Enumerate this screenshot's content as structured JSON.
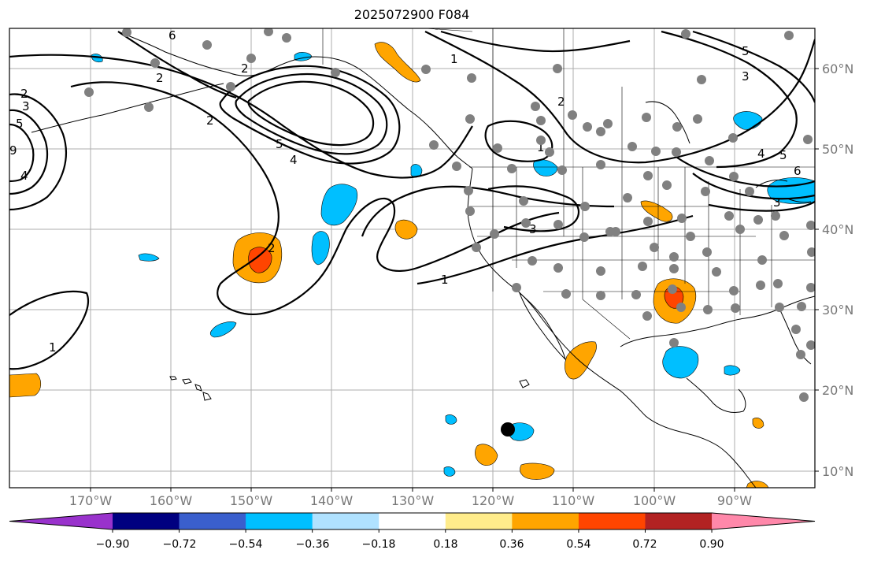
{
  "title": "2025072900 F084",
  "lat_labels": [
    "60°N",
    "50°N",
    "40°N",
    "30°N",
    "20°N",
    "10°N"
  ],
  "lon_labels": [
    "170°W",
    "160°W",
    "150°W",
    "140°W",
    "130°W",
    "120°W",
    "110°W",
    "100°W",
    "90°W"
  ],
  "colorbar": {
    "tick_labels": [
      "−0.90",
      "−0.72",
      "−0.54",
      "−0.36",
      "−0.18",
      "0.18",
      "0.36",
      "0.54",
      "0.72",
      "0.90"
    ],
    "colors": [
      "#9932CC",
      "#000080",
      "#3A5FCD",
      "#00BFFF",
      "#B0E2FF",
      "#FFFFFF",
      "#FFEC8B",
      "#FFA500",
      "#FF4500",
      "#B22222",
      "#FF88AA"
    ]
  },
  "contour_labels": [
    "6",
    "5",
    "3",
    "2",
    "1",
    "3",
    "2",
    "1",
    "5",
    "4",
    "2",
    "3",
    "1",
    "2",
    "4",
    "5",
    "6",
    "1",
    "2",
    "3",
    "5",
    "9",
    "4",
    "2"
  ],
  "marker": "filled-circle"
}
